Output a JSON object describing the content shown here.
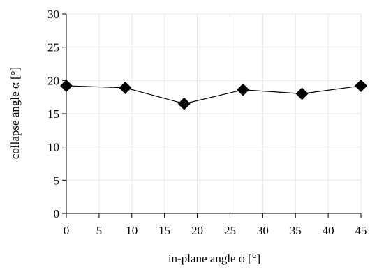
{
  "chart_data": {
    "type": "line",
    "title": "",
    "xlabel": "in-plane angle ϕ [°]",
    "ylabel": "collapse angle α [°]",
    "xlim": [
      0,
      45
    ],
    "ylim": [
      0,
      30
    ],
    "xticks": [
      0,
      5,
      10,
      15,
      20,
      25,
      30,
      35,
      40,
      45
    ],
    "yticks": [
      0,
      5,
      10,
      15,
      20,
      25,
      30
    ],
    "grid": true,
    "marker": "diamond",
    "series": [
      {
        "x": [
          0,
          9,
          18,
          27,
          36,
          45
        ],
        "y": [
          19.2,
          18.9,
          16.5,
          18.6,
          18.0,
          19.2
        ],
        "color": "#000000"
      }
    ]
  }
}
